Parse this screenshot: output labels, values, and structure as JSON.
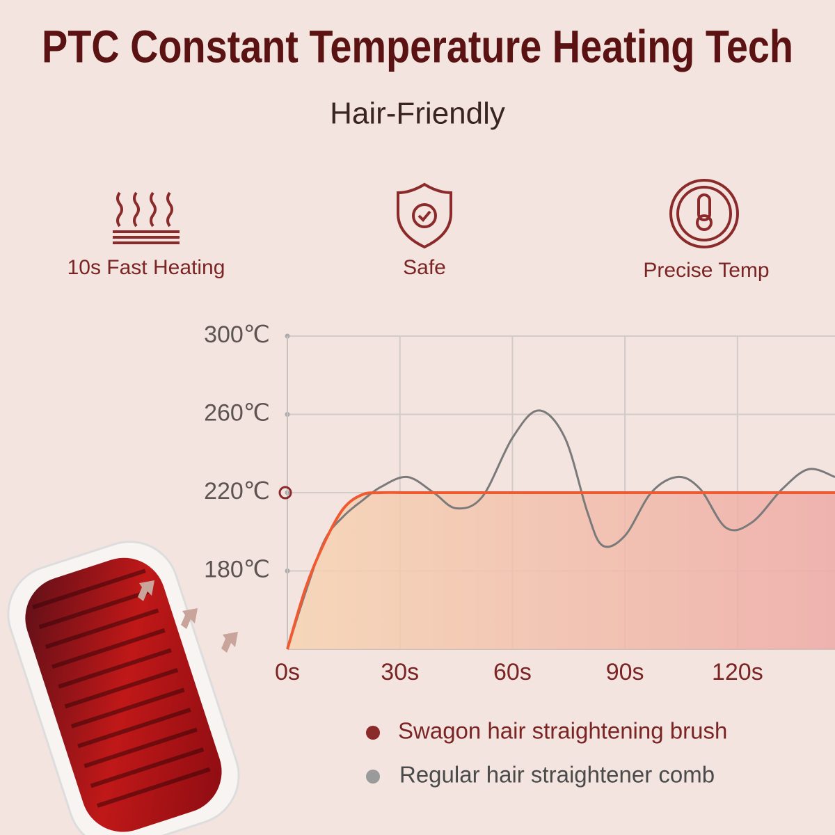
{
  "header": {
    "title": "PTC Constant Temperature Heating Tech",
    "subtitle": "Hair-Friendly"
  },
  "features": [
    {
      "label": "10s Fast Heating"
    },
    {
      "label": "Safe"
    },
    {
      "label": "Precise Temp"
    }
  ],
  "chart_data": {
    "type": "line",
    "x": [
      0,
      5,
      10,
      15,
      20,
      25,
      32,
      39,
      45,
      52,
      60,
      67,
      74,
      80,
      84,
      90,
      97,
      104,
      110,
      117,
      124,
      132,
      139,
      146
    ],
    "series": [
      {
        "name": "Swagon hair straightening brush",
        "color": "#ef5a32",
        "values": [
          140,
          172,
          195,
          212,
          219,
          220,
          220,
          220,
          220,
          220,
          220,
          220,
          220,
          220,
          220,
          220,
          220,
          220,
          220,
          220,
          220,
          220,
          220,
          220
        ]
      },
      {
        "name": "Regular hair straightener comb",
        "color": "#7a7a7a",
        "values": [
          140,
          170,
          196,
          208,
          216,
          223,
          228,
          220,
          212,
          218,
          248,
          262,
          248,
          210,
          193,
          198,
          220,
          228,
          222,
          202,
          205,
          222,
          232,
          228
        ]
      }
    ],
    "xlim": [
      0,
      146
    ],
    "ylim": [
      140,
      300
    ],
    "xticks": [
      {
        "value": 0,
        "label": "0s"
      },
      {
        "value": 30,
        "label": "30s"
      },
      {
        "value": 60,
        "label": "60s"
      },
      {
        "value": 90,
        "label": "90s"
      },
      {
        "value": 120,
        "label": "120s"
      }
    ],
    "yticks": [
      {
        "value": 180,
        "label": "180℃"
      },
      {
        "value": 220,
        "label": "220℃"
      },
      {
        "value": 260,
        "label": "260℃"
      },
      {
        "value": 300,
        "label": "300℃"
      }
    ],
    "grid": true
  }
}
